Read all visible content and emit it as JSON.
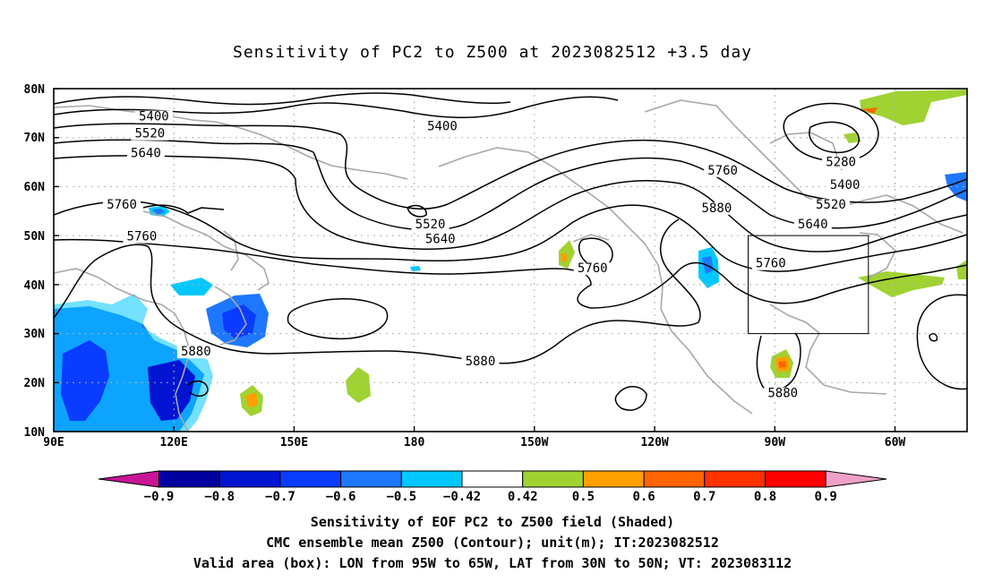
{
  "title": "Sensitivity of PC2 to Z500 at 2023082512 +3.5 day",
  "map": {
    "lat_labels": [
      "80N",
      "70N",
      "60N",
      "50N",
      "40N",
      "30N",
      "20N",
      "10N"
    ],
    "lon_labels": [
      "90E",
      "120E",
      "150E",
      "180",
      "150W",
      "120W",
      "90W",
      "60W"
    ],
    "contour_labels": [
      {
        "text": "5400",
        "lon": 115.0,
        "lat": 73.5
      },
      {
        "text": "5400",
        "lon": 187.0,
        "lat": 71.5
      },
      {
        "text": "5520",
        "lon": 114.0,
        "lat": 70.0
      },
      {
        "text": "5640",
        "lon": 113.0,
        "lat": 66.0
      },
      {
        "text": "5760",
        "lon": 257.0,
        "lat": 62.5
      },
      {
        "text": "5280",
        "lon": 286.5,
        "lat": 64.2
      },
      {
        "text": "5400",
        "lon": 287.5,
        "lat": 59.5
      },
      {
        "text": "5520",
        "lon": 284.0,
        "lat": 55.5
      },
      {
        "text": "5760",
        "lon": 107.0,
        "lat": 55.5
      },
      {
        "text": "5880",
        "lon": 255.5,
        "lat": 54.8
      },
      {
        "text": "5520",
        "lon": 184.0,
        "lat": 51.5
      },
      {
        "text": "5640",
        "lon": 186.5,
        "lat": 48.5
      },
      {
        "text": "5640",
        "lon": 279.5,
        "lat": 51.5
      },
      {
        "text": "5760",
        "lon": 112.0,
        "lat": 49.0
      },
      {
        "text": "5760",
        "lon": 269.0,
        "lat": 43.5
      },
      {
        "text": "5760",
        "lon": 224.5,
        "lat": 42.5
      },
      {
        "text": "5880",
        "lon": 125.5,
        "lat": 25.5
      },
      {
        "text": "5880",
        "lon": 196.5,
        "lat": 23.5
      },
      {
        "text": "5880",
        "lon": 272.0,
        "lat": 17.0
      }
    ],
    "valid_box": {
      "lon_min": -95,
      "lon_max": -65,
      "lat_min": 30,
      "lat_max": 50
    }
  },
  "colorbar": {
    "labels": [
      "−0.9",
      "−0.8",
      "−0.7",
      "−0.6",
      "−0.5",
      "−0.42",
      "0.42",
      "0.5",
      "0.6",
      "0.7",
      "0.8",
      "0.9"
    ],
    "colors": {
      "below": "#c81496",
      "bins": [
        "#0000a0",
        "#0014d2",
        "#0a3cff",
        "#1e78ff",
        "#00c8ff",
        "#ffffff",
        "#a0d232",
        "#ffa000",
        "#ff6400",
        "#ff3200",
        "#ff0000"
      ],
      "above": "#f0a0c8"
    }
  },
  "footer": {
    "line1": "Sensitivity of EOF PC2 to Z500 field (Shaded)",
    "line2": "CMC ensemble mean Z500 (Contour); unit(m); IT:2023082512",
    "line3": "Valid area (box): LON from 95W to 65W, LAT from 30N to 50N; VT: 2023083112"
  }
}
